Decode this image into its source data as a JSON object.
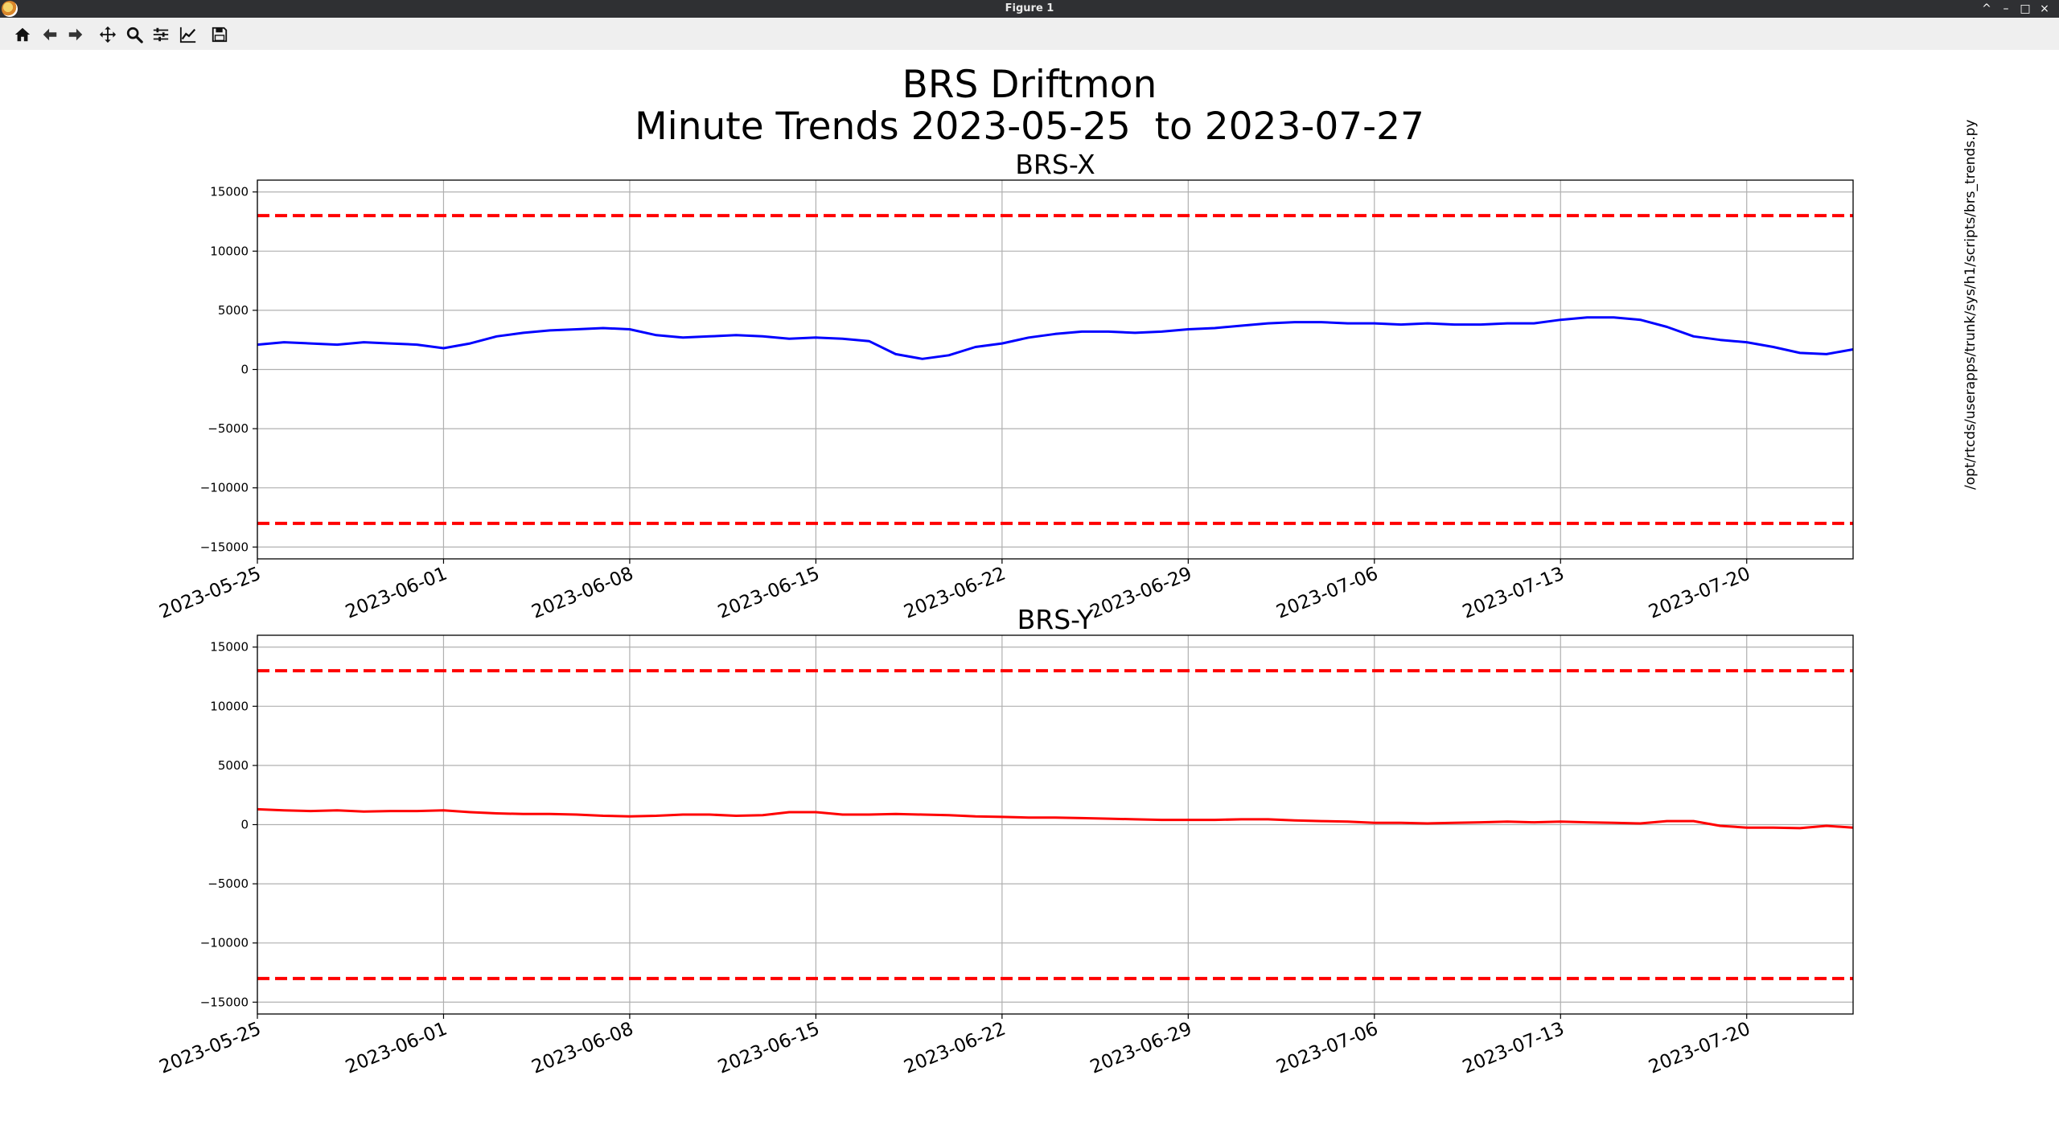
{
  "window": {
    "title": "Figure 1",
    "controls": [
      "^",
      "–",
      "□",
      "×"
    ]
  },
  "toolbar": {
    "buttons": [
      {
        "name": "home-icon",
        "label": "Home"
      },
      {
        "name": "back-icon",
        "label": "Back"
      },
      {
        "name": "forward-icon",
        "label": "Forward"
      },
      {
        "name": "pan-icon",
        "label": "Pan"
      },
      {
        "name": "zoom-icon",
        "label": "Zoom"
      },
      {
        "name": "subplots-icon",
        "label": "Subplots"
      },
      {
        "name": "axes-icon",
        "label": "Customize"
      },
      {
        "name": "save-icon",
        "label": "Save"
      }
    ]
  },
  "figure": {
    "title_line1": "BRS Driftmon",
    "title_line2": "Minute Trends 2023-05-25  to 2023-07-27",
    "side_text": "/opt/rtcds/userapps/trunk/sys/h1/scripts/brs_trends.py"
  },
  "chart_data": [
    {
      "type": "line",
      "title": "BRS-X",
      "xlim": [
        "2023-05-25",
        "2023-07-24"
      ],
      "ylim": [
        -16000,
        16000
      ],
      "xticks": [
        "2023-05-25",
        "2023-06-01",
        "2023-06-08",
        "2023-06-15",
        "2023-06-22",
        "2023-06-29",
        "2023-07-06",
        "2023-07-13",
        "2023-07-20"
      ],
      "yticks": [
        -15000,
        -10000,
        -5000,
        0,
        5000,
        10000,
        15000
      ],
      "ytick_labels": [
        "−15000",
        "−10000",
        "−5000",
        "0",
        "5000",
        "10000",
        "15000"
      ],
      "grid": true,
      "thresholds": [
        13000,
        -13000
      ],
      "threshold_color": "#ff0000",
      "series": [
        {
          "color": "#0000ff",
          "x": [
            "2023-05-25",
            "2023-05-26",
            "2023-05-27",
            "2023-05-28",
            "2023-05-29",
            "2023-05-30",
            "2023-05-31",
            "2023-06-01",
            "2023-06-02",
            "2023-06-03",
            "2023-06-04",
            "2023-06-05",
            "2023-06-06",
            "2023-06-07",
            "2023-06-08",
            "2023-06-09",
            "2023-06-10",
            "2023-06-11",
            "2023-06-12",
            "2023-06-13",
            "2023-06-14",
            "2023-06-15",
            "2023-06-16",
            "2023-06-17",
            "2023-06-18",
            "2023-06-19",
            "2023-06-20",
            "2023-06-21",
            "2023-06-22",
            "2023-06-23",
            "2023-06-24",
            "2023-06-25",
            "2023-06-26",
            "2023-06-27",
            "2023-06-28",
            "2023-06-29",
            "2023-06-30",
            "2023-07-01",
            "2023-07-02",
            "2023-07-03",
            "2023-07-04",
            "2023-07-05",
            "2023-07-06",
            "2023-07-07",
            "2023-07-08",
            "2023-07-09",
            "2023-07-10",
            "2023-07-11",
            "2023-07-12",
            "2023-07-13",
            "2023-07-14",
            "2023-07-15",
            "2023-07-16",
            "2023-07-17",
            "2023-07-18",
            "2023-07-19",
            "2023-07-20",
            "2023-07-21",
            "2023-07-22",
            "2023-07-23",
            "2023-07-24"
          ],
          "y": [
            2100,
            2300,
            2200,
            2100,
            2300,
            2200,
            2100,
            1800,
            2200,
            2800,
            3100,
            3300,
            3400,
            3500,
            3400,
            2900,
            2700,
            2800,
            2900,
            2800,
            2600,
            2700,
            2600,
            2400,
            1300,
            900,
            1200,
            1900,
            2200,
            2700,
            3000,
            3200,
            3200,
            3100,
            3200,
            3400,
            3500,
            3700,
            3900,
            4000,
            4000,
            3900,
            3900,
            3800,
            3900,
            3800,
            3800,
            3900,
            3900,
            4200,
            4400,
            4400,
            4200,
            3600,
            2800,
            2500,
            2300,
            1900,
            1400,
            1300,
            1700
          ]
        }
      ]
    },
    {
      "type": "line",
      "title": "BRS-Y",
      "xlim": [
        "2023-05-25",
        "2023-07-24"
      ],
      "ylim": [
        -16000,
        16000
      ],
      "xticks": [
        "2023-05-25",
        "2023-06-01",
        "2023-06-08",
        "2023-06-15",
        "2023-06-22",
        "2023-06-29",
        "2023-07-06",
        "2023-07-13",
        "2023-07-20"
      ],
      "yticks": [
        -15000,
        -10000,
        -5000,
        0,
        5000,
        10000,
        15000
      ],
      "ytick_labels": [
        "−15000",
        "−10000",
        "−5000",
        "0",
        "5000",
        "10000",
        "15000"
      ],
      "grid": true,
      "thresholds": [
        13000,
        -13000
      ],
      "threshold_color": "#ff0000",
      "series": [
        {
          "color": "#ff0000",
          "x": [
            "2023-05-25",
            "2023-05-26",
            "2023-05-27",
            "2023-05-28",
            "2023-05-29",
            "2023-05-30",
            "2023-05-31",
            "2023-06-01",
            "2023-06-02",
            "2023-06-03",
            "2023-06-04",
            "2023-06-05",
            "2023-06-06",
            "2023-06-07",
            "2023-06-08",
            "2023-06-09",
            "2023-06-10",
            "2023-06-11",
            "2023-06-12",
            "2023-06-13",
            "2023-06-14",
            "2023-06-15",
            "2023-06-16",
            "2023-06-17",
            "2023-06-18",
            "2023-06-19",
            "2023-06-20",
            "2023-06-21",
            "2023-06-22",
            "2023-06-23",
            "2023-06-24",
            "2023-06-25",
            "2023-06-26",
            "2023-06-27",
            "2023-06-28",
            "2023-06-29",
            "2023-06-30",
            "2023-07-01",
            "2023-07-02",
            "2023-07-03",
            "2023-07-04",
            "2023-07-05",
            "2023-07-06",
            "2023-07-07",
            "2023-07-08",
            "2023-07-09",
            "2023-07-10",
            "2023-07-11",
            "2023-07-12",
            "2023-07-13",
            "2023-07-14",
            "2023-07-15",
            "2023-07-16",
            "2023-07-17",
            "2023-07-18",
            "2023-07-19",
            "2023-07-20",
            "2023-07-21",
            "2023-07-22",
            "2023-07-23",
            "2023-07-24"
          ],
          "y": [
            1300,
            1200,
            1150,
            1200,
            1100,
            1150,
            1150,
            1200,
            1050,
            950,
            900,
            900,
            850,
            750,
            700,
            750,
            850,
            850,
            750,
            800,
            1050,
            1050,
            850,
            850,
            900,
            850,
            800,
            700,
            650,
            600,
            600,
            550,
            500,
            450,
            400,
            400,
            400,
            450,
            450,
            350,
            300,
            250,
            150,
            150,
            100,
            150,
            200,
            250,
            200,
            250,
            200,
            150,
            100,
            300,
            300,
            -100,
            -250,
            -250,
            -300,
            -100,
            -250
          ]
        }
      ]
    }
  ]
}
